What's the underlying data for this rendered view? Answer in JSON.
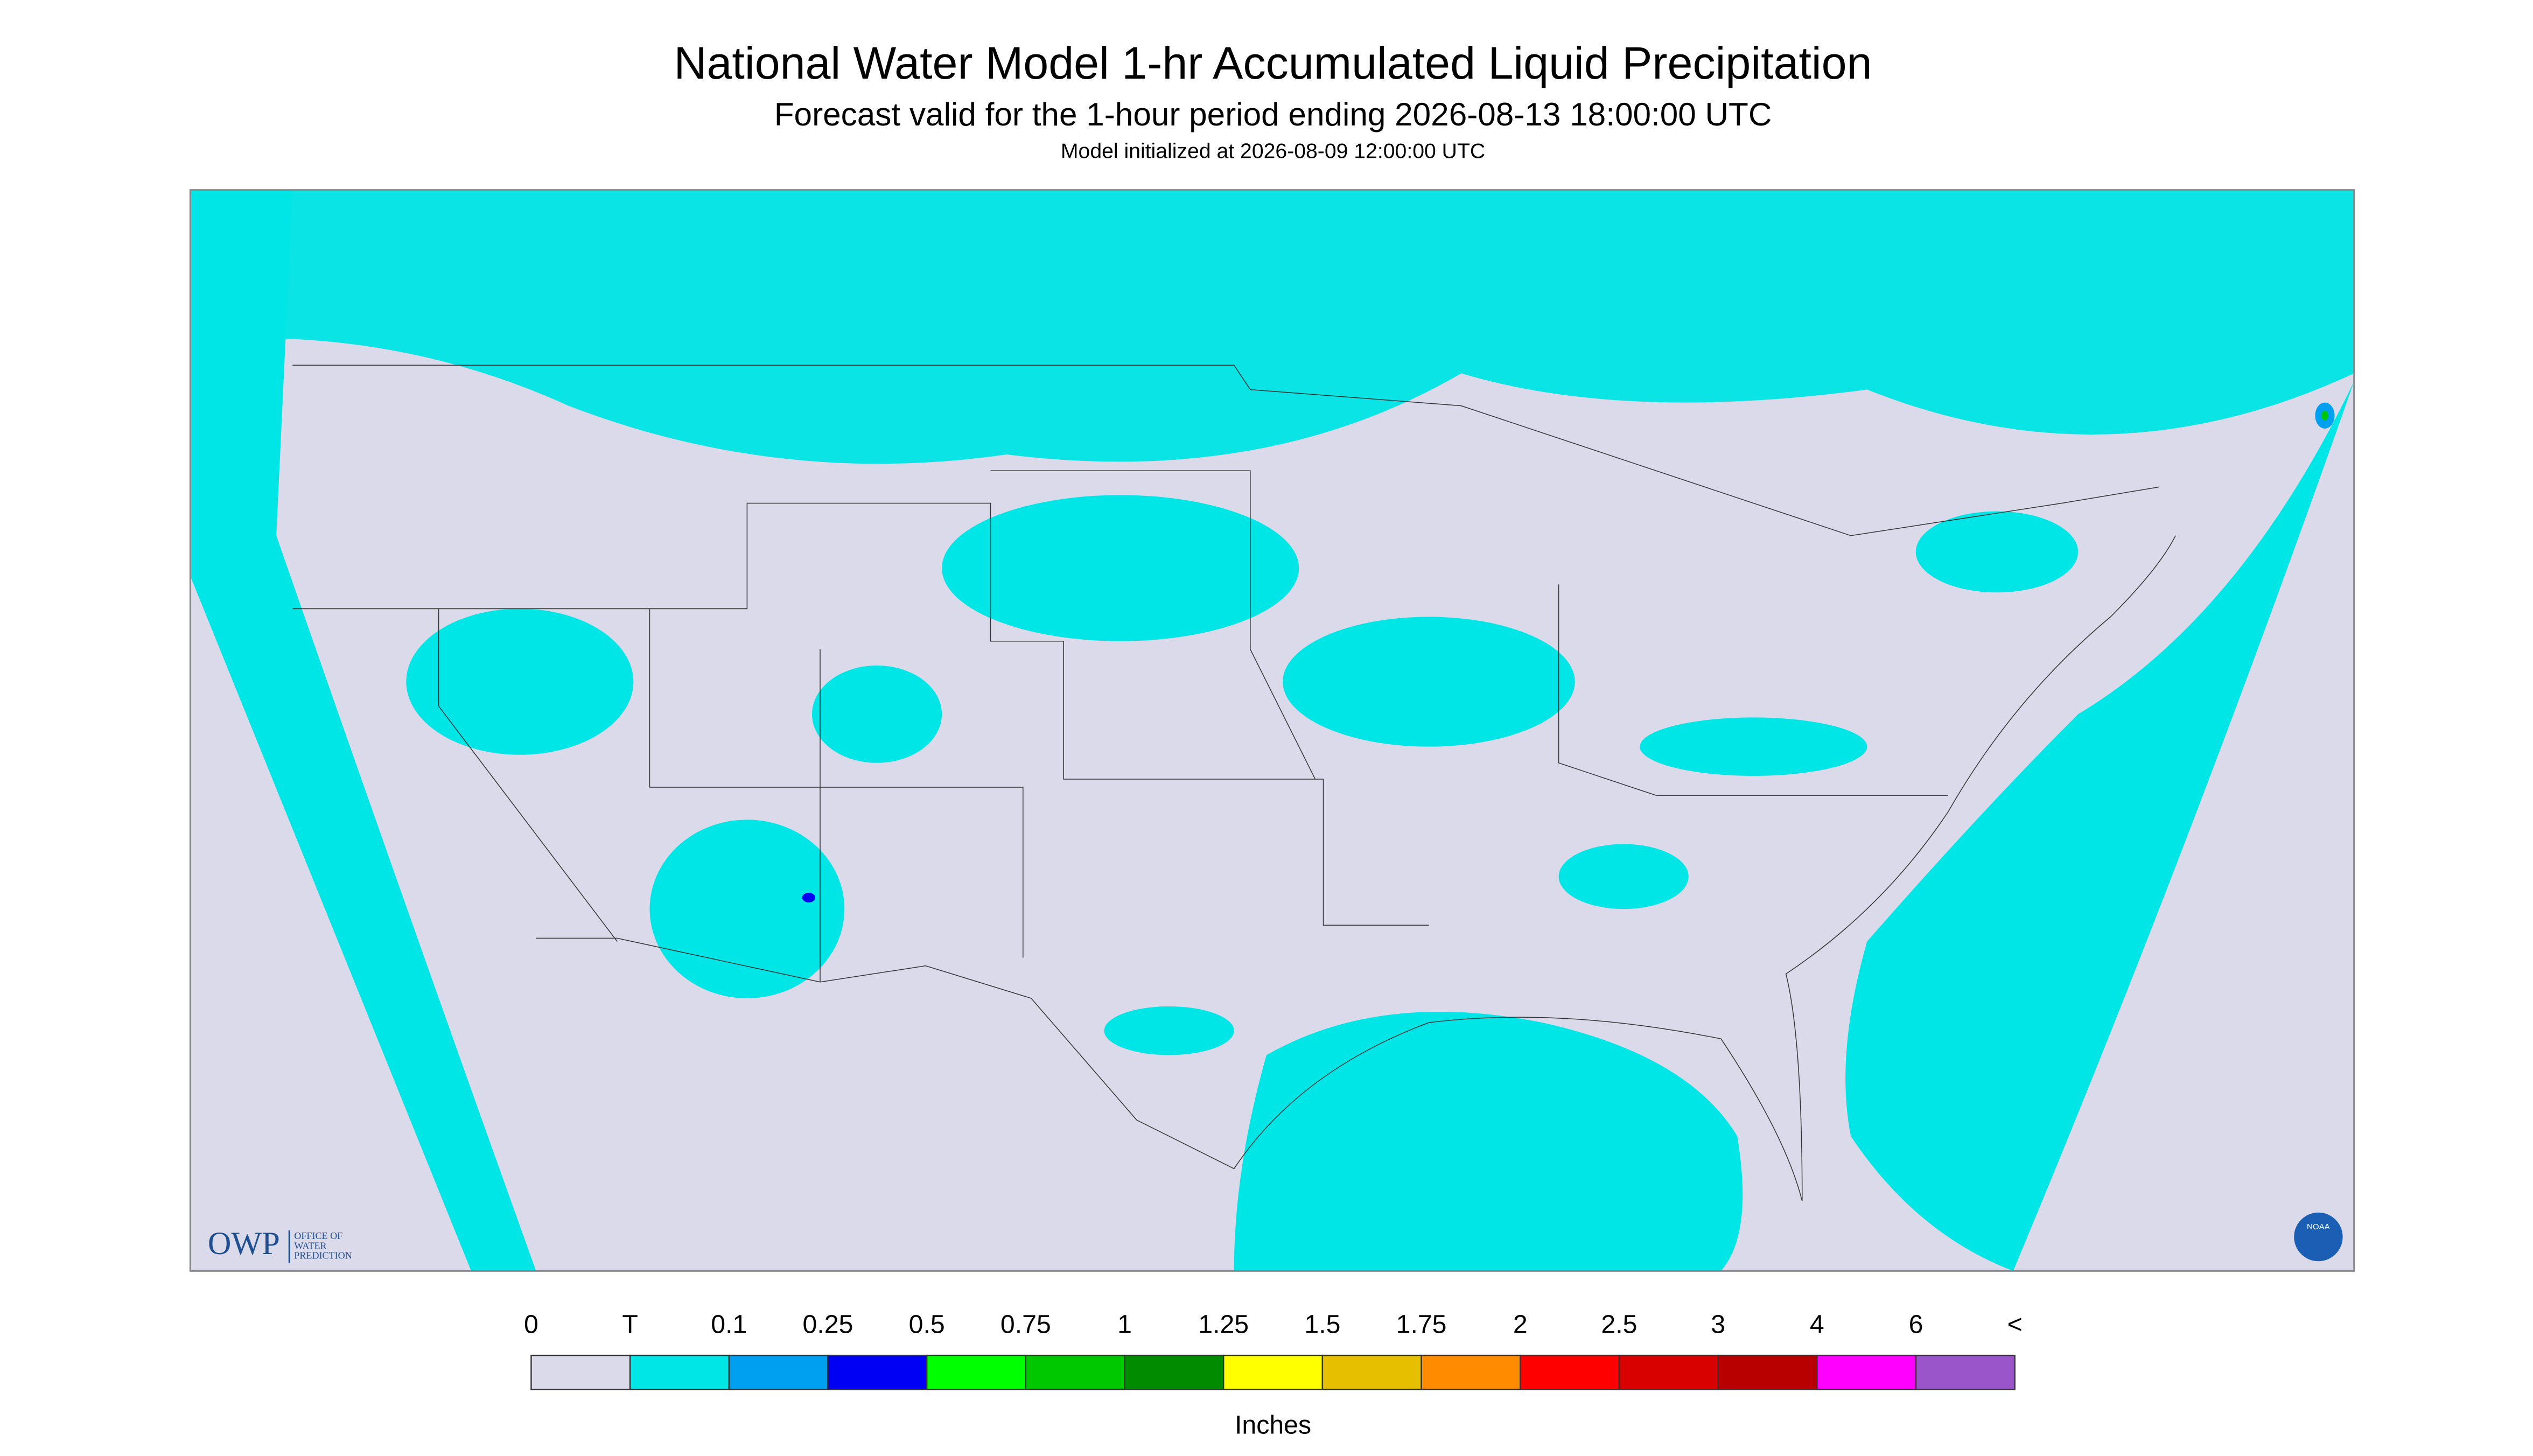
{
  "header": {
    "title": "National Water Model 1-hr Accumulated Liquid Precipitation",
    "subtitle": "Forecast valid for the 1-hour period ending 2026-08-13 18:00:00 UTC",
    "init": "Model initialized at 2026-08-09 12:00:00 UTC"
  },
  "logos": {
    "owp": "OWP",
    "owp_name": [
      "OFFICE OF",
      "WATER",
      "PREDICTION"
    ],
    "noaa": "NOAA"
  },
  "legend": {
    "labels": [
      "0",
      "T",
      "0.1",
      "0.25",
      "0.5",
      "0.75",
      "1",
      "1.25",
      "1.5",
      "1.75",
      "2",
      "2.5",
      "3",
      "4",
      "6",
      "<"
    ],
    "colors": [
      "#dadaeb",
      "#00e5e5",
      "#00a0f0",
      "#0000f5",
      "#00ff00",
      "#00c800",
      "#008c00",
      "#ffff00",
      "#e6bf00",
      "#ff8c00",
      "#ff0000",
      "#d90000",
      "#b80000",
      "#ff00ff",
      "#9955c9"
    ],
    "unit": "Inches"
  }
}
